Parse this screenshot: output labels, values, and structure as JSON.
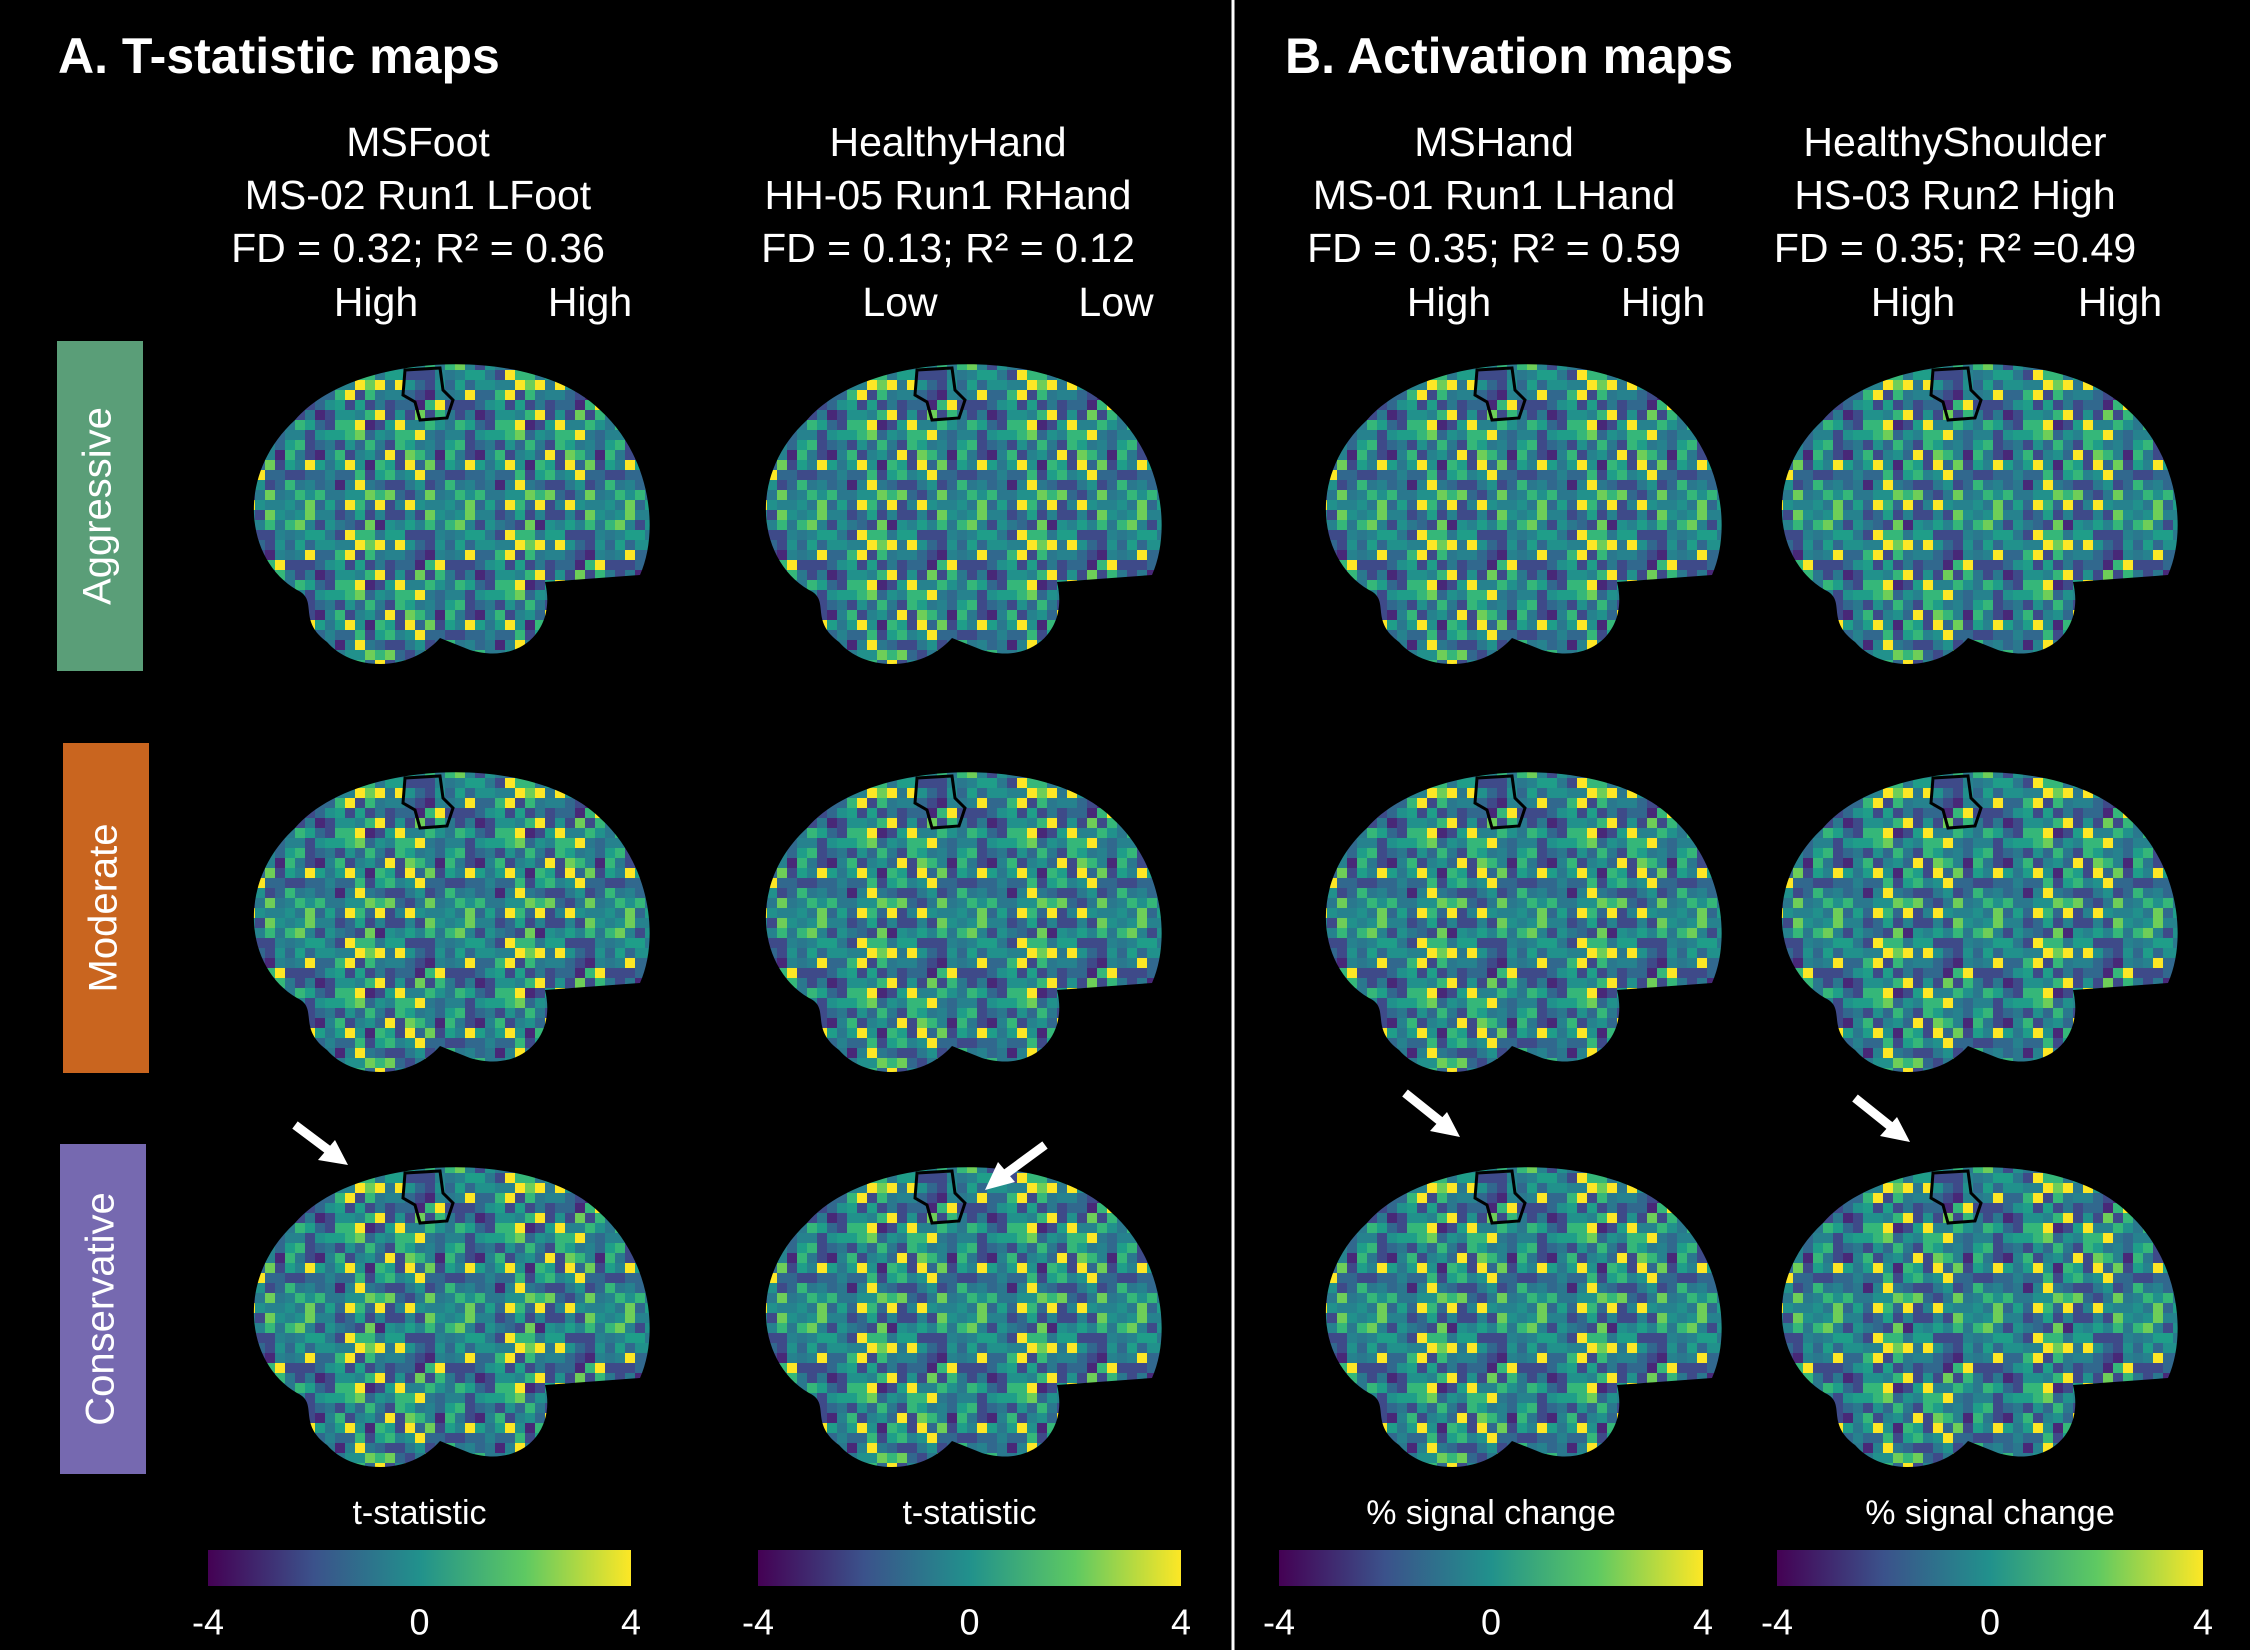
{
  "panels": [
    {
      "title": "A. T-statistic maps",
      "columns": [
        {
          "lines": [
            "MSFoot",
            "MS-02 Run1 LFoot",
            "FD = 0.32; R² = 0.36"
          ],
          "quality": [
            "High",
            "High"
          ],
          "colorbar": {
            "label": "t-statistic",
            "lim": [
              -4,
              4
            ],
            "ticks": [
              -4,
              0,
              4
            ]
          }
        },
        {
          "lines": [
            "HealthyHand",
            "HH-05 Run1 RHand",
            "FD = 0.13; R² = 0.12"
          ],
          "quality": [
            "Low",
            "Low"
          ],
          "colorbar": {
            "label": "t-statistic",
            "lim": [
              -4,
              4
            ],
            "ticks": [
              -4,
              0,
              4
            ]
          }
        }
      ]
    },
    {
      "title": "B. Activation maps",
      "columns": [
        {
          "lines": [
            "MSHand",
            "MS-01 Run1 LHand",
            "FD = 0.35; R² = 0.59"
          ],
          "quality": [
            "High",
            "High"
          ],
          "colorbar": {
            "label": "% signal change",
            "lim": [
              -4,
              4
            ],
            "ticks": [
              -4,
              0,
              4
            ]
          }
        },
        {
          "lines": [
            "HealthyShoulder",
            "HS-03 Run2 High",
            "FD = 0.35; R² =0.49"
          ],
          "quality": [
            "High",
            "High"
          ],
          "colorbar": {
            "label": "% signal change",
            "lim": [
              -4,
              4
            ],
            "ticks": [
              -4,
              0,
              4
            ]
          }
        }
      ]
    }
  ],
  "row_labels": [
    "Aggressive",
    "Moderate",
    "Conservative"
  ]
}
